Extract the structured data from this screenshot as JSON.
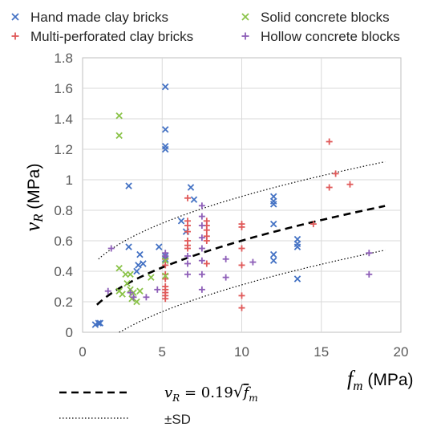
{
  "chart_data": {
    "type": "scatter",
    "xlabel": "f_m (MPa)",
    "ylabel": "v_R (MPa)",
    "xlim": [
      0,
      20
    ],
    "ylim": [
      0,
      1.8
    ],
    "x_ticks": [
      "0",
      "5",
      "10",
      "15",
      "20"
    ],
    "y_ticks": [
      "0",
      "0.2",
      "0.4",
      "0.6",
      "0.8",
      "1",
      "1.2",
      "1.4",
      "1.6",
      "1.8"
    ],
    "grid": true,
    "legend_position": "top",
    "series": [
      {
        "name": "Hand made clay bricks",
        "marker": "x",
        "color": "#4472C4",
        "points": [
          [
            0.8,
            0.05
          ],
          [
            1.0,
            0.06
          ],
          [
            1.1,
            0.06
          ],
          [
            2.9,
            0.96
          ],
          [
            2.9,
            0.56
          ],
          [
            3.4,
            0.4
          ],
          [
            3.5,
            0.44
          ],
          [
            3.6,
            0.51
          ],
          [
            3.8,
            0.45
          ],
          [
            4.8,
            0.56
          ],
          [
            5.2,
            1.61
          ],
          [
            5.2,
            1.33
          ],
          [
            5.2,
            1.22
          ],
          [
            5.2,
            1.2
          ],
          [
            5.2,
            0.5
          ],
          [
            5.2,
            0.48
          ],
          [
            5.2,
            0.47
          ],
          [
            6.2,
            0.73
          ],
          [
            6.5,
            0.66
          ],
          [
            6.8,
            0.95
          ],
          [
            7.0,
            0.87
          ],
          [
            12.0,
            0.89
          ],
          [
            12.0,
            0.86
          ],
          [
            12.0,
            0.84
          ],
          [
            12.0,
            0.71
          ],
          [
            12.0,
            0.51
          ],
          [
            12.0,
            0.47
          ],
          [
            13.5,
            0.61
          ],
          [
            13.5,
            0.58
          ],
          [
            13.5,
            0.56
          ],
          [
            13.5,
            0.35
          ]
        ]
      },
      {
        "name": "Multi-perforated clay bricks",
        "marker": "+",
        "color": "#E05A5A",
        "points": [
          [
            5.2,
            0.48
          ],
          [
            5.2,
            0.44
          ],
          [
            5.2,
            0.38
          ],
          [
            5.2,
            0.35
          ],
          [
            5.2,
            0.3
          ],
          [
            5.2,
            0.28
          ],
          [
            5.2,
            0.26
          ],
          [
            5.2,
            0.24
          ],
          [
            5.2,
            0.22
          ],
          [
            6.6,
            0.88
          ],
          [
            6.6,
            0.73
          ],
          [
            6.6,
            0.7
          ],
          [
            6.6,
            0.66
          ],
          [
            6.6,
            0.6
          ],
          [
            6.6,
            0.57
          ],
          [
            6.6,
            0.55
          ],
          [
            7.8,
            0.73
          ],
          [
            7.8,
            0.7
          ],
          [
            7.8,
            0.67
          ],
          [
            7.8,
            0.63
          ],
          [
            7.8,
            0.6
          ],
          [
            7.8,
            0.45
          ],
          [
            10.0,
            0.71
          ],
          [
            10.0,
            0.69
          ],
          [
            10.0,
            0.55
          ],
          [
            10.0,
            0.44
          ],
          [
            10.0,
            0.24
          ],
          [
            10.0,
            0.16
          ],
          [
            14.5,
            0.71
          ],
          [
            15.5,
            1.25
          ],
          [
            15.5,
            0.95
          ],
          [
            15.9,
            1.04
          ],
          [
            16.8,
            0.97
          ]
        ]
      },
      {
        "name": "Solid concrete blocks",
        "marker": "x",
        "color": "#8BC34A",
        "points": [
          [
            2.3,
            1.42
          ],
          [
            2.3,
            1.29
          ],
          [
            2.3,
            0.42
          ],
          [
            2.3,
            0.27
          ],
          [
            2.5,
            0.25
          ],
          [
            2.7,
            0.38
          ],
          [
            2.8,
            0.32
          ],
          [
            3.0,
            0.38
          ],
          [
            3.0,
            0.28
          ],
          [
            3.1,
            0.22
          ],
          [
            3.2,
            0.26
          ],
          [
            3.4,
            0.2
          ],
          [
            3.6,
            0.27
          ],
          [
            4.3,
            0.36
          ],
          [
            5.2,
            0.47
          ],
          [
            5.2,
            0.37
          ]
        ]
      },
      {
        "name": "Hollow concrete blocks",
        "marker": "+",
        "color": "#8E5FB8",
        "points": [
          [
            1.6,
            0.27
          ],
          [
            1.8,
            0.55
          ],
          [
            3.0,
            0.26
          ],
          [
            3.2,
            0.23
          ],
          [
            4.0,
            0.23
          ],
          [
            4.7,
            0.28
          ],
          [
            5.2,
            0.52
          ],
          [
            5.2,
            0.5
          ],
          [
            6.6,
            0.5
          ],
          [
            6.6,
            0.45
          ],
          [
            6.6,
            0.38
          ],
          [
            7.5,
            0.83
          ],
          [
            7.5,
            0.76
          ],
          [
            7.5,
            0.7
          ],
          [
            7.5,
            0.62
          ],
          [
            7.5,
            0.55
          ],
          [
            7.5,
            0.47
          ],
          [
            7.5,
            0.38
          ],
          [
            7.5,
            0.28
          ],
          [
            9.0,
            0.48
          ],
          [
            9.0,
            0.36
          ],
          [
            10.7,
            0.46
          ],
          [
            18.0,
            0.52
          ],
          [
            18.0,
            0.38
          ]
        ]
      }
    ],
    "fit_line": {
      "label": "v_R = 0.19√f_m",
      "coefficient": 0.19,
      "x_range": [
        0.9,
        19.0
      ],
      "style": "dashed",
      "color": "#000000"
    },
    "sd_band": {
      "label": "±SD",
      "offset": 0.29,
      "x_range": [
        1.0,
        19.0
      ],
      "style": "dotted",
      "color": "#000000"
    }
  }
}
